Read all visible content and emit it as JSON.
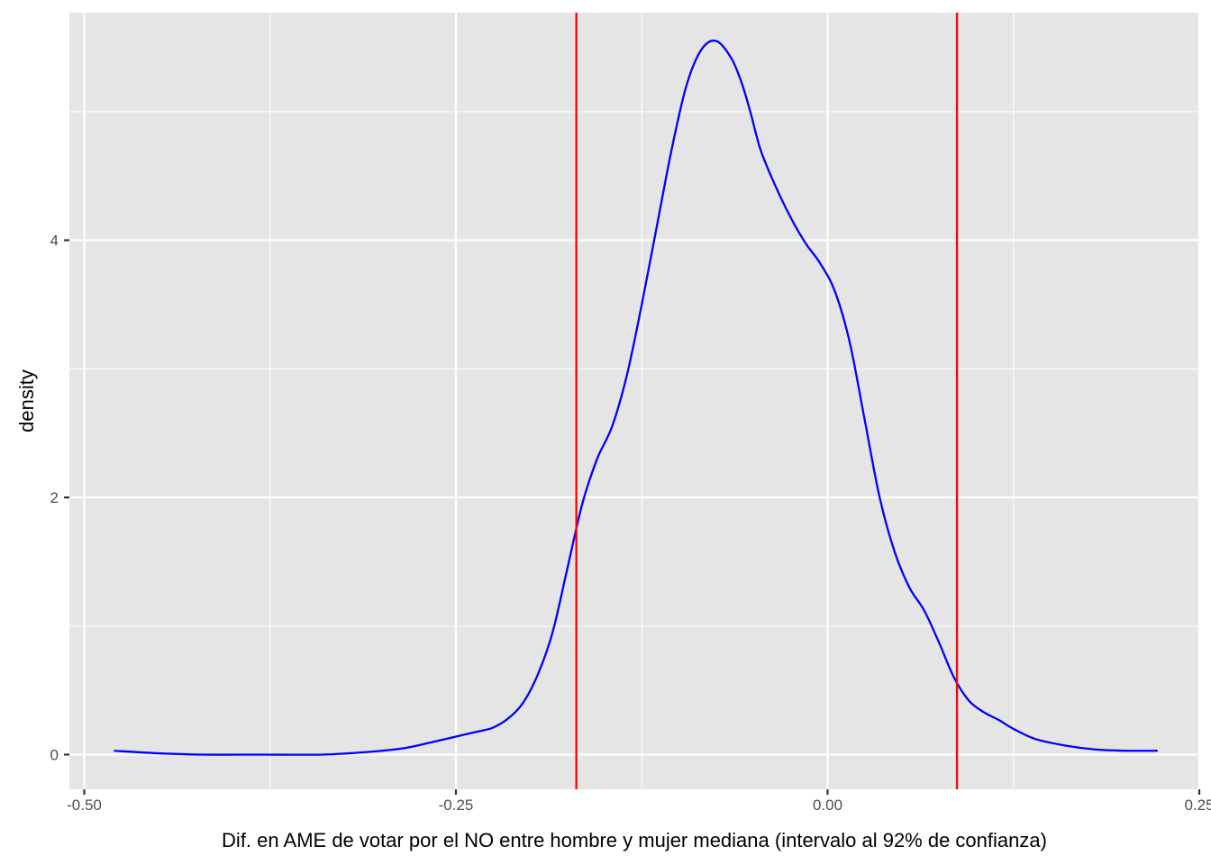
{
  "chart_data": {
    "type": "line",
    "title": "",
    "xlabel": "Dif. en AME de votar por el NO entre hombre y mujer mediana (intervalo al 92% de confianza)",
    "ylabel": "density",
    "xlim": [
      -0.51,
      0.25
    ],
    "ylim": [
      -0.27,
      5.77
    ],
    "x_ticks": [
      -0.5,
      -0.25,
      0.0,
      0.25
    ],
    "x_tick_labels": [
      "-0.50",
      "-0.25",
      "0.00",
      "0.25"
    ],
    "y_ticks": [
      0,
      2,
      4
    ],
    "y_tick_labels": [
      "0",
      "2",
      "4"
    ],
    "grid": true,
    "panel_background": "#e5e5e5",
    "grid_color": "#ffffff",
    "series": [
      {
        "color": "#0000ff",
        "x": [
          -0.48,
          -0.45,
          -0.42,
          -0.38,
          -0.34,
          -0.31,
          -0.285,
          -0.265,
          -0.25,
          -0.235,
          -0.225,
          -0.215,
          -0.205,
          -0.195,
          -0.185,
          -0.175,
          -0.165,
          -0.155,
          -0.145,
          -0.135,
          -0.125,
          -0.115,
          -0.105,
          -0.095,
          -0.085,
          -0.075,
          -0.065,
          -0.058,
          -0.052,
          -0.045,
          -0.035,
          -0.025,
          -0.015,
          -0.005,
          0.005,
          0.015,
          0.025,
          0.035,
          0.045,
          0.055,
          0.065,
          0.075,
          0.085,
          0.095,
          0.105,
          0.115,
          0.125,
          0.14,
          0.16,
          0.18,
          0.2,
          0.222
        ],
        "y": [
          0.03,
          0.01,
          0.0,
          0.0,
          0.0,
          0.02,
          0.05,
          0.1,
          0.14,
          0.18,
          0.21,
          0.28,
          0.4,
          0.62,
          0.95,
          1.45,
          1.95,
          2.3,
          2.55,
          2.95,
          3.5,
          4.1,
          4.7,
          5.2,
          5.48,
          5.55,
          5.42,
          5.23,
          5.0,
          4.7,
          4.42,
          4.18,
          3.98,
          3.82,
          3.6,
          3.2,
          2.6,
          2.0,
          1.58,
          1.3,
          1.12,
          0.87,
          0.6,
          0.42,
          0.33,
          0.27,
          0.2,
          0.12,
          0.07,
          0.04,
          0.03,
          0.03
        ]
      }
    ],
    "vlines": [
      {
        "x": -0.169,
        "color": "#ff0000"
      },
      {
        "x": 0.087,
        "color": "#ff0000"
      }
    ]
  }
}
